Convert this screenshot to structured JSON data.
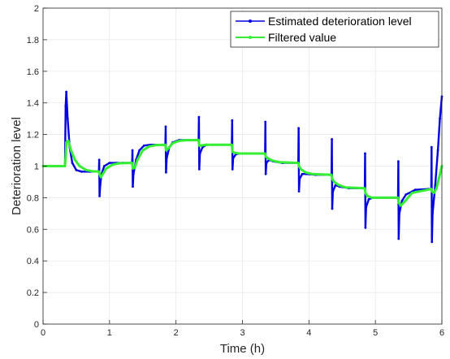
{
  "chart_data": {
    "type": "line",
    "xlabel": "Time (h)",
    "ylabel": "Deterioration level",
    "xlim": [
      0,
      6
    ],
    "ylim": [
      0,
      2
    ],
    "xticks": [
      0,
      1,
      2,
      3,
      4,
      5,
      6
    ],
    "yticks": [
      0,
      0.2,
      0.4,
      0.6,
      0.8,
      1,
      1.2,
      1.4,
      1.6,
      1.8,
      2
    ],
    "grid": true,
    "legend_position": "top-right",
    "series": [
      {
        "name": "Estimated deterioration level",
        "color": "#0000e0",
        "x": [
          0,
          0.33,
          0.34,
          0.35,
          0.37,
          0.4,
          0.44,
          0.5,
          0.58,
          0.7,
          0.84,
          0.845,
          0.85,
          0.86,
          0.88,
          0.92,
          1.0,
          1.1,
          1.2,
          1.34,
          1.345,
          1.35,
          1.36,
          1.4,
          1.45,
          1.52,
          1.62,
          1.84,
          1.845,
          1.85,
          1.86,
          1.9,
          1.95,
          2.05,
          2.2,
          2.34,
          2.345,
          2.35,
          2.36,
          2.4,
          2.46,
          2.55,
          2.7,
          2.84,
          2.845,
          2.85,
          2.86,
          2.9,
          2.96,
          3.05,
          3.2,
          3.34,
          3.345,
          3.35,
          3.36,
          3.4,
          3.46,
          3.6,
          3.8,
          3.84,
          3.845,
          3.85,
          3.86,
          3.9,
          3.96,
          4.1,
          4.3,
          4.34,
          4.345,
          4.35,
          4.36,
          4.4,
          4.46,
          4.6,
          4.8,
          4.84,
          4.845,
          4.85,
          4.86,
          4.9,
          4.96,
          5.1,
          5.3,
          5.34,
          5.345,
          5.35,
          5.36,
          5.4,
          5.46,
          5.6,
          5.8,
          5.84,
          5.845,
          5.85,
          5.86,
          5.9,
          5.94,
          5.97,
          6.0
        ],
        "y": [
          1.0,
          1.0,
          1.38,
          1.47,
          1.3,
          1.12,
          1.02,
          0.975,
          0.965,
          0.965,
          0.965,
          1.04,
          0.81,
          0.88,
          0.95,
          1.0,
          1.02,
          1.02,
          1.02,
          1.02,
          1.1,
          0.87,
          0.95,
          1.04,
          1.1,
          1.13,
          1.135,
          1.135,
          1.25,
          0.96,
          1.05,
          1.12,
          1.15,
          1.165,
          1.165,
          1.165,
          1.31,
          0.98,
          1.08,
          1.12,
          1.135,
          1.135,
          1.135,
          1.135,
          1.29,
          0.98,
          1.05,
          1.075,
          1.08,
          1.08,
          1.08,
          1.08,
          1.28,
          0.95,
          1.02,
          1.04,
          1.03,
          1.02,
          1.02,
          1.02,
          1.24,
          0.84,
          0.92,
          0.95,
          0.95,
          0.945,
          0.945,
          0.945,
          1.17,
          0.73,
          0.84,
          0.88,
          0.87,
          0.86,
          0.86,
          0.86,
          1.08,
          0.61,
          0.74,
          0.79,
          0.8,
          0.8,
          0.8,
          0.8,
          1.03,
          0.54,
          0.7,
          0.78,
          0.82,
          0.85,
          0.855,
          0.855,
          1.12,
          0.52,
          0.7,
          0.88,
          1.1,
          1.3,
          1.44
        ]
      },
      {
        "name": "Filtered value",
        "color": "#33ee33",
        "x": [
          0,
          0.33,
          0.34,
          0.35,
          0.38,
          0.42,
          0.48,
          0.55,
          0.65,
          0.75,
          0.84,
          0.85,
          0.87,
          0.9,
          0.95,
          1.05,
          1.15,
          1.34,
          1.35,
          1.38,
          1.42,
          1.5,
          1.6,
          1.7,
          1.84,
          1.85,
          1.88,
          1.95,
          2.05,
          2.15,
          2.34,
          2.35,
          2.38,
          2.45,
          2.55,
          2.84,
          2.85,
          2.88,
          2.95,
          3.05,
          3.34,
          3.35,
          3.38,
          3.45,
          3.55,
          3.84,
          3.85,
          3.88,
          3.95,
          4.05,
          4.34,
          4.35,
          4.38,
          4.45,
          4.55,
          4.84,
          4.85,
          4.88,
          4.95,
          5.05,
          5.34,
          5.35,
          5.38,
          5.45,
          5.55,
          5.84,
          5.85,
          5.88,
          5.92,
          5.96,
          6.0
        ],
        "y": [
          1.0,
          1.0,
          1.06,
          1.15,
          1.16,
          1.1,
          1.04,
          1.0,
          0.975,
          0.967,
          0.965,
          0.95,
          0.93,
          0.95,
          0.985,
          1.01,
          1.018,
          1.02,
          0.985,
          0.99,
          1.04,
          1.1,
          1.125,
          1.133,
          1.135,
          1.1,
          1.11,
          1.145,
          1.16,
          1.164,
          1.165,
          1.13,
          1.13,
          1.135,
          1.135,
          1.135,
          1.09,
          1.085,
          1.08,
          1.08,
          1.08,
          1.06,
          1.05,
          1.035,
          1.025,
          1.02,
          1.0,
          0.98,
          0.96,
          0.95,
          0.945,
          0.92,
          0.9,
          0.88,
          0.865,
          0.86,
          0.83,
          0.81,
          0.8,
          0.8,
          0.8,
          0.77,
          0.75,
          0.78,
          0.83,
          0.855,
          0.84,
          0.83,
          0.86,
          0.93,
          1.0
        ]
      }
    ]
  }
}
